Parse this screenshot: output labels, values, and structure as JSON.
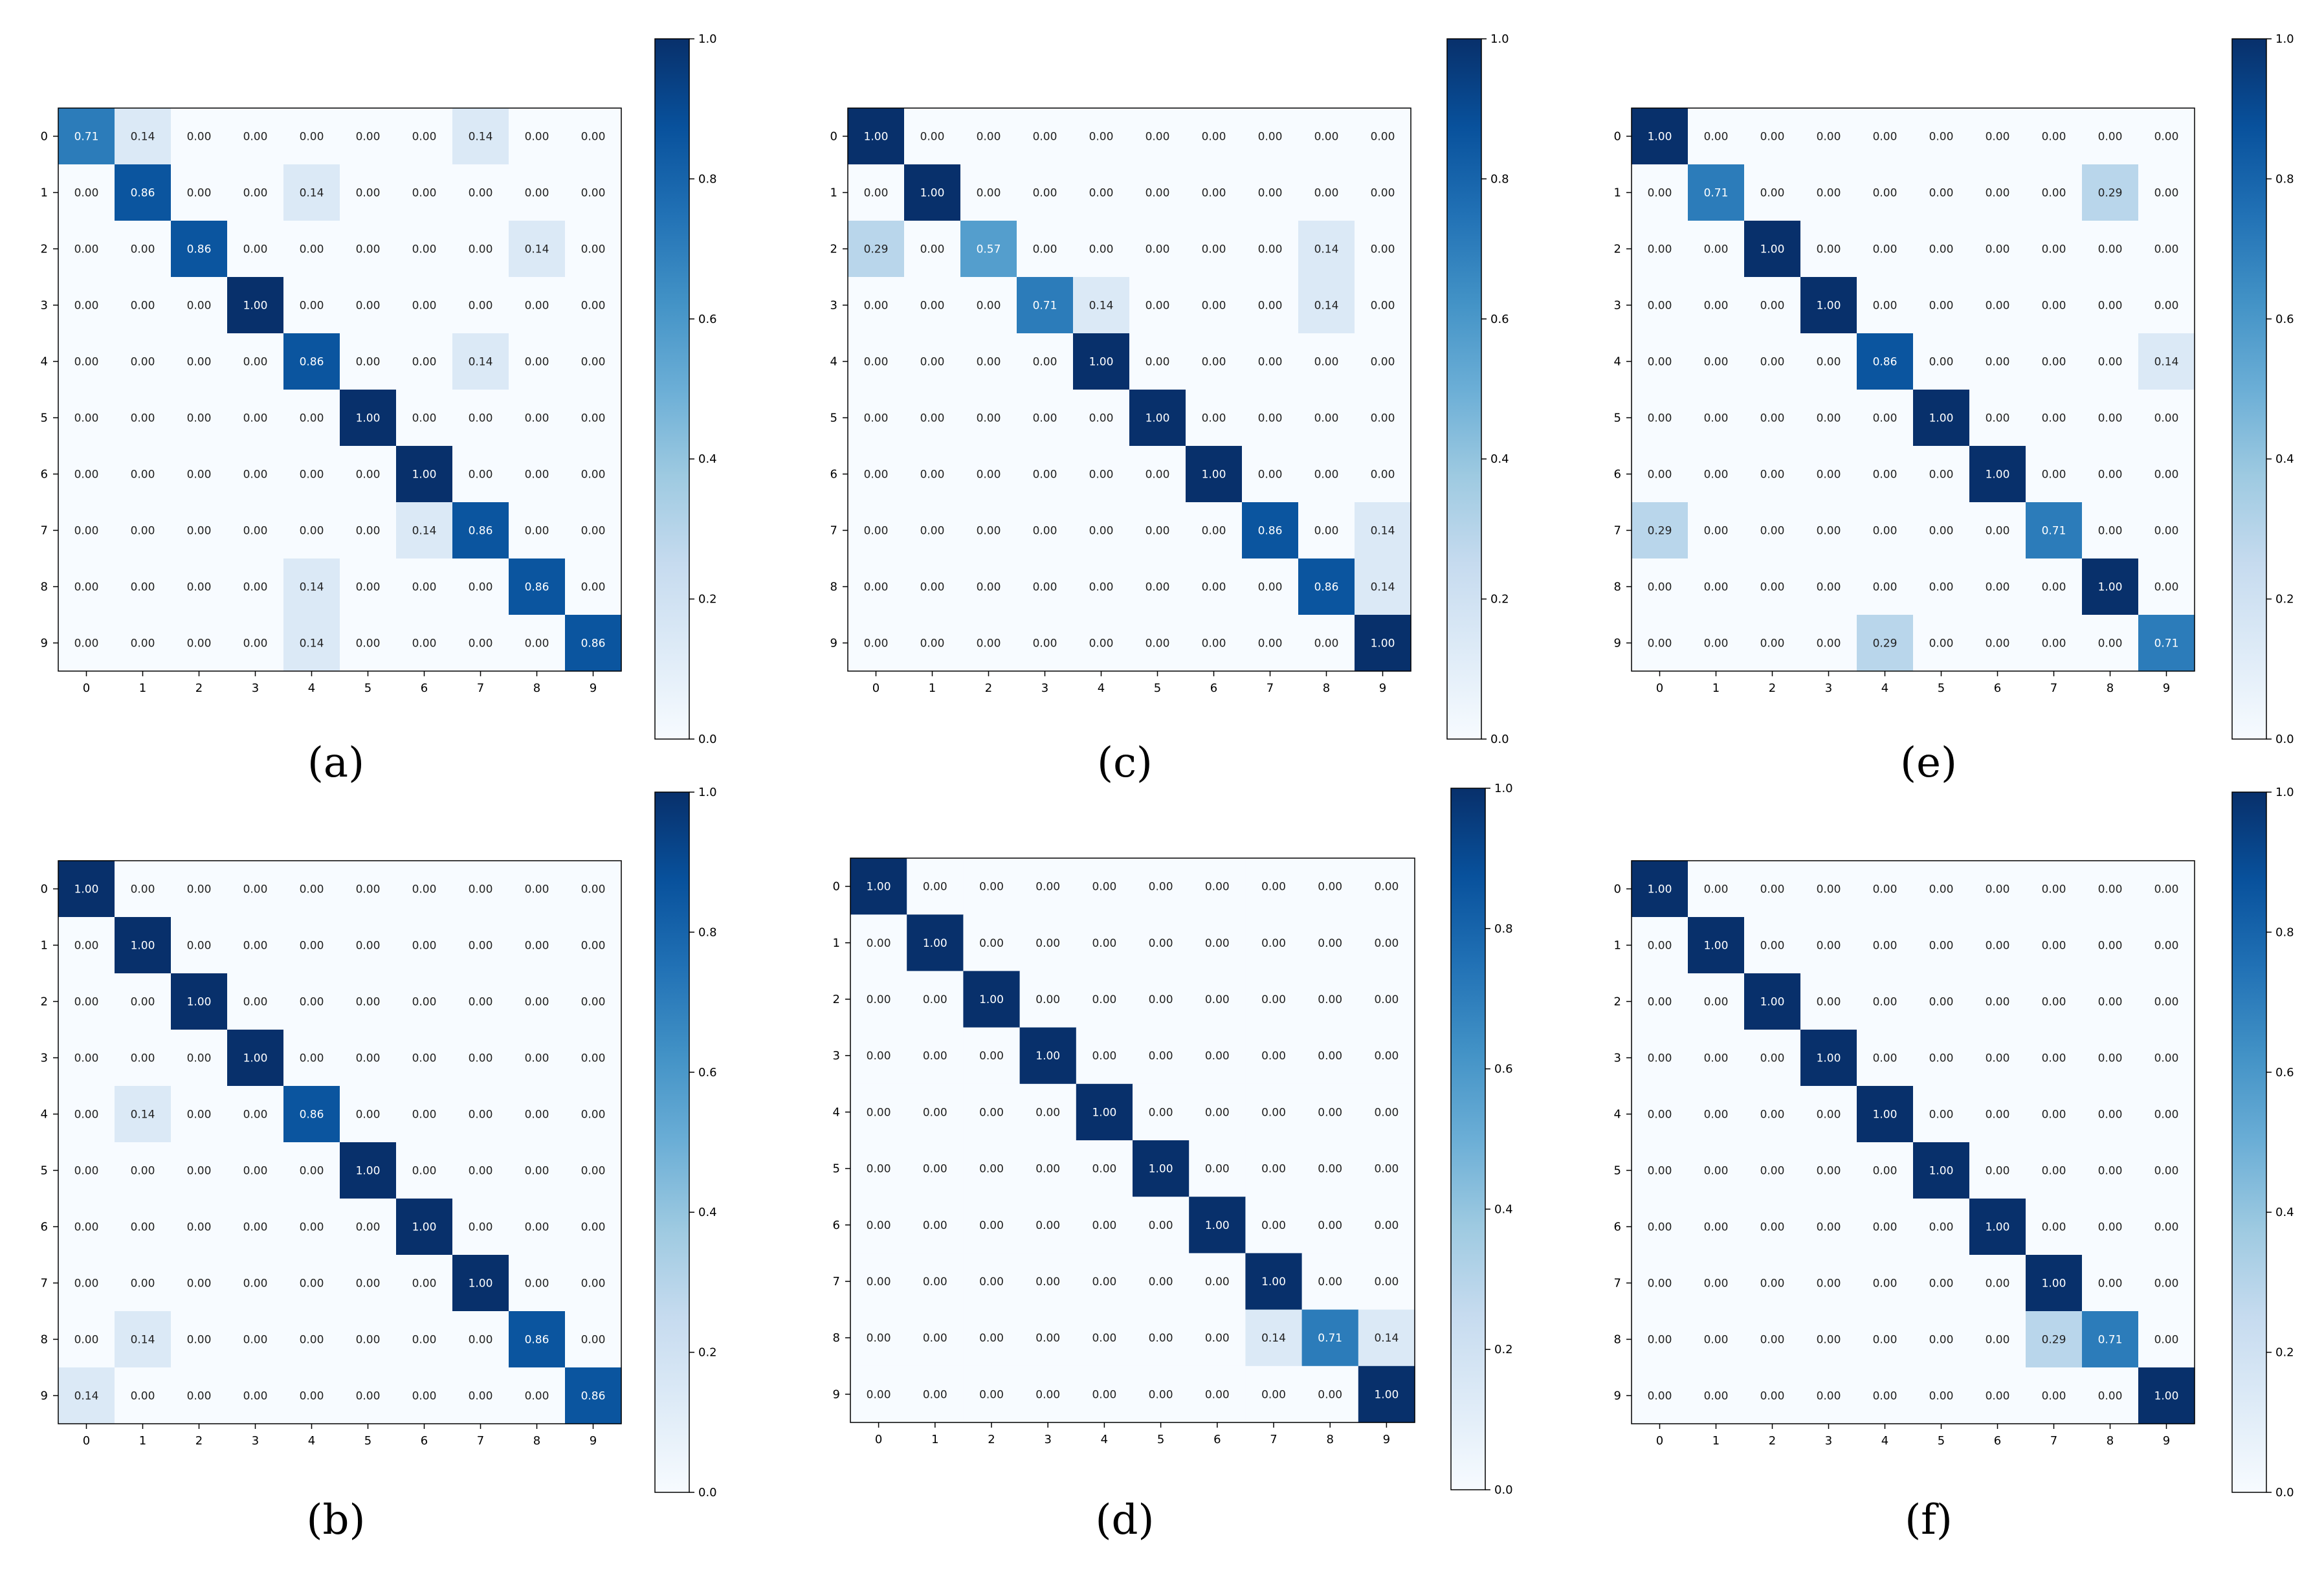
{
  "chart_data": [
    {
      "type": "heatmap",
      "caption": "(a)",
      "x_ticks": [
        "0",
        "1",
        "2",
        "3",
        "4",
        "5",
        "6",
        "7",
        "8",
        "9"
      ],
      "y_ticks": [
        "0",
        "1",
        "2",
        "3",
        "4",
        "5",
        "6",
        "7",
        "8",
        "9"
      ],
      "colorbar": {
        "min": 0.0,
        "max": 1.0,
        "ticks": [
          "0.0",
          "0.2",
          "0.4",
          "0.6",
          "0.8",
          "1.0"
        ],
        "colormap": "Blues"
      },
      "matrix": [
        [
          0.71,
          0.14,
          0.0,
          0.0,
          0.0,
          0.0,
          0.0,
          0.14,
          0.0,
          0.0
        ],
        [
          0.0,
          0.86,
          0.0,
          0.0,
          0.14,
          0.0,
          0.0,
          0.0,
          0.0,
          0.0
        ],
        [
          0.0,
          0.0,
          0.86,
          0.0,
          0.0,
          0.0,
          0.0,
          0.0,
          0.14,
          0.0
        ],
        [
          0.0,
          0.0,
          0.0,
          1.0,
          0.0,
          0.0,
          0.0,
          0.0,
          0.0,
          0.0
        ],
        [
          0.0,
          0.0,
          0.0,
          0.0,
          0.86,
          0.0,
          0.0,
          0.14,
          0.0,
          0.0
        ],
        [
          0.0,
          0.0,
          0.0,
          0.0,
          0.0,
          1.0,
          0.0,
          0.0,
          0.0,
          0.0
        ],
        [
          0.0,
          0.0,
          0.0,
          0.0,
          0.0,
          0.0,
          1.0,
          0.0,
          0.0,
          0.0
        ],
        [
          0.0,
          0.0,
          0.0,
          0.0,
          0.0,
          0.0,
          0.14,
          0.86,
          0.0,
          0.0
        ],
        [
          0.0,
          0.0,
          0.0,
          0.0,
          0.14,
          0.0,
          0.0,
          0.0,
          0.86,
          0.0
        ],
        [
          0.0,
          0.0,
          0.0,
          0.0,
          0.14,
          0.0,
          0.0,
          0.0,
          0.0,
          0.86
        ]
      ]
    },
    {
      "type": "heatmap",
      "caption": "(b)",
      "x_ticks": [
        "0",
        "1",
        "2",
        "3",
        "4",
        "5",
        "6",
        "7",
        "8",
        "9"
      ],
      "y_ticks": [
        "0",
        "1",
        "2",
        "3",
        "4",
        "5",
        "6",
        "7",
        "8",
        "9"
      ],
      "colorbar": {
        "min": 0.0,
        "max": 1.0,
        "ticks": [
          "0.0",
          "0.2",
          "0.4",
          "0.6",
          "0.8",
          "1.0"
        ],
        "colormap": "Blues"
      },
      "matrix": [
        [
          1.0,
          0.0,
          0.0,
          0.0,
          0.0,
          0.0,
          0.0,
          0.0,
          0.0,
          0.0
        ],
        [
          0.0,
          1.0,
          0.0,
          0.0,
          0.0,
          0.0,
          0.0,
          0.0,
          0.0,
          0.0
        ],
        [
          0.0,
          0.0,
          1.0,
          0.0,
          0.0,
          0.0,
          0.0,
          0.0,
          0.0,
          0.0
        ],
        [
          0.0,
          0.0,
          0.0,
          1.0,
          0.0,
          0.0,
          0.0,
          0.0,
          0.0,
          0.0
        ],
        [
          0.0,
          0.14,
          0.0,
          0.0,
          0.86,
          0.0,
          0.0,
          0.0,
          0.0,
          0.0
        ],
        [
          0.0,
          0.0,
          0.0,
          0.0,
          0.0,
          1.0,
          0.0,
          0.0,
          0.0,
          0.0
        ],
        [
          0.0,
          0.0,
          0.0,
          0.0,
          0.0,
          0.0,
          1.0,
          0.0,
          0.0,
          0.0
        ],
        [
          0.0,
          0.0,
          0.0,
          0.0,
          0.0,
          0.0,
          0.0,
          1.0,
          0.0,
          0.0
        ],
        [
          0.0,
          0.14,
          0.0,
          0.0,
          0.0,
          0.0,
          0.0,
          0.0,
          0.86,
          0.0
        ],
        [
          0.14,
          0.0,
          0.0,
          0.0,
          0.0,
          0.0,
          0.0,
          0.0,
          0.0,
          0.86
        ]
      ]
    },
    {
      "type": "heatmap",
      "caption": "(c)",
      "x_ticks": [
        "0",
        "1",
        "2",
        "3",
        "4",
        "5",
        "6",
        "7",
        "8",
        "9"
      ],
      "y_ticks": [
        "0",
        "1",
        "2",
        "3",
        "4",
        "5",
        "6",
        "7",
        "8",
        "9"
      ],
      "colorbar": {
        "min": 0.0,
        "max": 1.0,
        "ticks": [
          "0.0",
          "0.2",
          "0.4",
          "0.6",
          "0.8",
          "1.0"
        ],
        "colormap": "Blues"
      },
      "matrix": [
        [
          1.0,
          0.0,
          0.0,
          0.0,
          0.0,
          0.0,
          0.0,
          0.0,
          0.0,
          0.0
        ],
        [
          0.0,
          1.0,
          0.0,
          0.0,
          0.0,
          0.0,
          0.0,
          0.0,
          0.0,
          0.0
        ],
        [
          0.29,
          0.0,
          0.57,
          0.0,
          0.0,
          0.0,
          0.0,
          0.0,
          0.14,
          0.0
        ],
        [
          0.0,
          0.0,
          0.0,
          0.71,
          0.14,
          0.0,
          0.0,
          0.0,
          0.14,
          0.0
        ],
        [
          0.0,
          0.0,
          0.0,
          0.0,
          1.0,
          0.0,
          0.0,
          0.0,
          0.0,
          0.0
        ],
        [
          0.0,
          0.0,
          0.0,
          0.0,
          0.0,
          1.0,
          0.0,
          0.0,
          0.0,
          0.0
        ],
        [
          0.0,
          0.0,
          0.0,
          0.0,
          0.0,
          0.0,
          1.0,
          0.0,
          0.0,
          0.0
        ],
        [
          0.0,
          0.0,
          0.0,
          0.0,
          0.0,
          0.0,
          0.0,
          0.86,
          0.0,
          0.14
        ],
        [
          0.0,
          0.0,
          0.0,
          0.0,
          0.0,
          0.0,
          0.0,
          0.0,
          0.86,
          0.14
        ],
        [
          0.0,
          0.0,
          0.0,
          0.0,
          0.0,
          0.0,
          0.0,
          0.0,
          0.0,
          1.0
        ]
      ]
    },
    {
      "type": "heatmap",
      "caption": "(d)",
      "x_ticks": [
        "0",
        "1",
        "2",
        "3",
        "4",
        "5",
        "6",
        "7",
        "8",
        "9"
      ],
      "y_ticks": [
        "0",
        "1",
        "2",
        "3",
        "4",
        "5",
        "6",
        "7",
        "8",
        "9"
      ],
      "colorbar": {
        "min": 0.0,
        "max": 1.0,
        "ticks": [
          "0.0",
          "0.2",
          "0.4",
          "0.6",
          "0.8",
          "1.0"
        ],
        "colormap": "Blues"
      },
      "matrix": [
        [
          1.0,
          0.0,
          0.0,
          0.0,
          0.0,
          0.0,
          0.0,
          0.0,
          0.0,
          0.0
        ],
        [
          0.0,
          1.0,
          0.0,
          0.0,
          0.0,
          0.0,
          0.0,
          0.0,
          0.0,
          0.0
        ],
        [
          0.0,
          0.0,
          1.0,
          0.0,
          0.0,
          0.0,
          0.0,
          0.0,
          0.0,
          0.0
        ],
        [
          0.0,
          0.0,
          0.0,
          1.0,
          0.0,
          0.0,
          0.0,
          0.0,
          0.0,
          0.0
        ],
        [
          0.0,
          0.0,
          0.0,
          0.0,
          1.0,
          0.0,
          0.0,
          0.0,
          0.0,
          0.0
        ],
        [
          0.0,
          0.0,
          0.0,
          0.0,
          0.0,
          1.0,
          0.0,
          0.0,
          0.0,
          0.0
        ],
        [
          0.0,
          0.0,
          0.0,
          0.0,
          0.0,
          0.0,
          1.0,
          0.0,
          0.0,
          0.0
        ],
        [
          0.0,
          0.0,
          0.0,
          0.0,
          0.0,
          0.0,
          0.0,
          1.0,
          0.0,
          0.0
        ],
        [
          0.0,
          0.0,
          0.0,
          0.0,
          0.0,
          0.0,
          0.0,
          0.14,
          0.71,
          0.14
        ],
        [
          0.0,
          0.0,
          0.0,
          0.0,
          0.0,
          0.0,
          0.0,
          0.0,
          0.0,
          1.0
        ]
      ]
    },
    {
      "type": "heatmap",
      "caption": "(e)",
      "x_ticks": [
        "0",
        "1",
        "2",
        "3",
        "4",
        "5",
        "6",
        "7",
        "8",
        "9"
      ],
      "y_ticks": [
        "0",
        "1",
        "2",
        "3",
        "4",
        "5",
        "6",
        "7",
        "8",
        "9"
      ],
      "colorbar": {
        "min": 0.0,
        "max": 1.0,
        "ticks": [
          "0.0",
          "0.2",
          "0.4",
          "0.6",
          "0.8",
          "1.0"
        ],
        "colormap": "Blues"
      },
      "matrix": [
        [
          1.0,
          0.0,
          0.0,
          0.0,
          0.0,
          0.0,
          0.0,
          0.0,
          0.0,
          0.0
        ],
        [
          0.0,
          0.71,
          0.0,
          0.0,
          0.0,
          0.0,
          0.0,
          0.0,
          0.29,
          0.0
        ],
        [
          0.0,
          0.0,
          1.0,
          0.0,
          0.0,
          0.0,
          0.0,
          0.0,
          0.0,
          0.0
        ],
        [
          0.0,
          0.0,
          0.0,
          1.0,
          0.0,
          0.0,
          0.0,
          0.0,
          0.0,
          0.0
        ],
        [
          0.0,
          0.0,
          0.0,
          0.0,
          0.86,
          0.0,
          0.0,
          0.0,
          0.0,
          0.14
        ],
        [
          0.0,
          0.0,
          0.0,
          0.0,
          0.0,
          1.0,
          0.0,
          0.0,
          0.0,
          0.0
        ],
        [
          0.0,
          0.0,
          0.0,
          0.0,
          0.0,
          0.0,
          1.0,
          0.0,
          0.0,
          0.0
        ],
        [
          0.29,
          0.0,
          0.0,
          0.0,
          0.0,
          0.0,
          0.0,
          0.71,
          0.0,
          0.0
        ],
        [
          0.0,
          0.0,
          0.0,
          0.0,
          0.0,
          0.0,
          0.0,
          0.0,
          1.0,
          0.0
        ],
        [
          0.0,
          0.0,
          0.0,
          0.0,
          0.29,
          0.0,
          0.0,
          0.0,
          0.0,
          0.71
        ]
      ]
    },
    {
      "type": "heatmap",
      "caption": "(f)",
      "x_ticks": [
        "0",
        "1",
        "2",
        "3",
        "4",
        "5",
        "6",
        "7",
        "8",
        "9"
      ],
      "y_ticks": [
        "0",
        "1",
        "2",
        "3",
        "4",
        "5",
        "6",
        "7",
        "8",
        "9"
      ],
      "colorbar": {
        "min": 0.0,
        "max": 1.0,
        "ticks": [
          "0.0",
          "0.2",
          "0.4",
          "0.6",
          "0.8",
          "1.0"
        ],
        "colormap": "Blues"
      },
      "matrix": [
        [
          1.0,
          0.0,
          0.0,
          0.0,
          0.0,
          0.0,
          0.0,
          0.0,
          0.0,
          0.0
        ],
        [
          0.0,
          1.0,
          0.0,
          0.0,
          0.0,
          0.0,
          0.0,
          0.0,
          0.0,
          0.0
        ],
        [
          0.0,
          0.0,
          1.0,
          0.0,
          0.0,
          0.0,
          0.0,
          0.0,
          0.0,
          0.0
        ],
        [
          0.0,
          0.0,
          0.0,
          1.0,
          0.0,
          0.0,
          0.0,
          0.0,
          0.0,
          0.0
        ],
        [
          0.0,
          0.0,
          0.0,
          0.0,
          1.0,
          0.0,
          0.0,
          0.0,
          0.0,
          0.0
        ],
        [
          0.0,
          0.0,
          0.0,
          0.0,
          0.0,
          1.0,
          0.0,
          0.0,
          0.0,
          0.0
        ],
        [
          0.0,
          0.0,
          0.0,
          0.0,
          0.0,
          0.0,
          1.0,
          0.0,
          0.0,
          0.0
        ],
        [
          0.0,
          0.0,
          0.0,
          0.0,
          0.0,
          0.0,
          0.0,
          1.0,
          0.0,
          0.0
        ],
        [
          0.0,
          0.0,
          0.0,
          0.0,
          0.0,
          0.0,
          0.0,
          0.29,
          0.71,
          0.0
        ],
        [
          0.0,
          0.0,
          0.0,
          0.0,
          0.0,
          0.0,
          0.0,
          0.0,
          0.0,
          1.0
        ]
      ]
    }
  ]
}
